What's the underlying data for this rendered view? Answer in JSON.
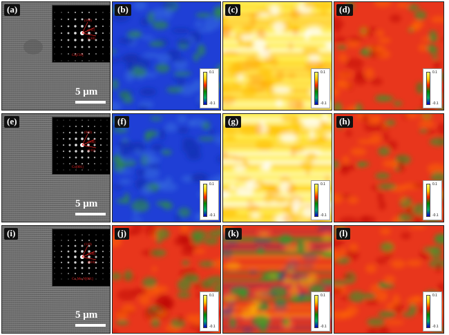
{
  "colorbar": {
    "max": "0.1",
    "min": "-0.1"
  },
  "rows": [
    {
      "tem": {
        "label": "(a)",
        "scale": "5 μm",
        "spots": [
          "(100)",
          "(111)",
          "(110)"
        ],
        "zone": "Co[1̄10]"
      },
      "maps": [
        {
          "label": "(b)",
          "palette": "blue"
        },
        {
          "label": "(c)",
          "palette": "yellow"
        },
        {
          "label": "(d)",
          "palette": "red"
        }
      ]
    },
    {
      "tem": {
        "label": "(e)",
        "scale": "5 μm",
        "spots": [
          "(010)",
          "(100)",
          "(111)"
        ],
        "zone": "Co[001]"
      },
      "maps": [
        {
          "label": "(f)",
          "palette": "blue"
        },
        {
          "label": "(g)",
          "palette": "yellow"
        },
        {
          "label": "(h)",
          "palette": "red"
        }
      ]
    },
    {
      "tem": {
        "label": "(i)",
        "scale": "5 μm",
        "spots": [
          "(110)",
          "(100)",
          "(010)"
        ],
        "zone": "Co₃Mo₃N[001]"
      },
      "maps": [
        {
          "label": "(j)",
          "palette": "red"
        },
        {
          "label": "(k)",
          "palette": "stripes"
        },
        {
          "label": "(l)",
          "palette": "red"
        }
      ]
    }
  ],
  "colors": {
    "blue": "#1f3fd6",
    "yellow": "#ffee55",
    "red": "#e8361c",
    "green": "#2f9a2f"
  }
}
